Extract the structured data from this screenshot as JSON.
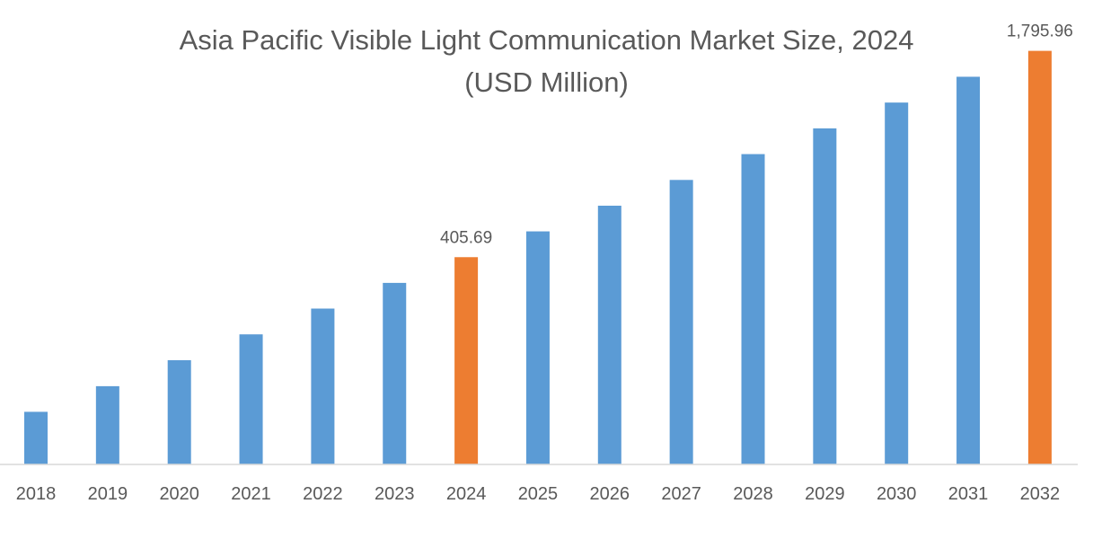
{
  "chart_data": {
    "type": "bar",
    "title": "Asia Pacific Visible Light Communication Market Size, 2024",
    "subtitle": "(USD Million)",
    "xlabel": "",
    "ylabel": "",
    "categories": [
      "2018",
      "2019",
      "2020",
      "2021",
      "2022",
      "2023",
      "2024",
      "2025",
      "2026",
      "2027",
      "2028",
      "2029",
      "2030",
      "2031",
      "2032"
    ],
    "values": [
      133,
      160,
      193,
      232.5,
      280,
      337,
      405.69,
      488.6,
      588,
      708,
      853,
      1027,
      1237,
      1490,
      1795.96
    ],
    "data_labels": {
      "2024": "405.69",
      "2032": "1,795.96"
    },
    "highlight": [
      "2024",
      "2032"
    ],
    "y_scale": "log",
    "ylim": [
      91,
      2000
    ],
    "grid": false,
    "legend": "none",
    "colors": {
      "bar": "#5b9bd5",
      "highlight": "#ed7d31",
      "axis": "#d9d9d9",
      "text": "#595959"
    }
  }
}
